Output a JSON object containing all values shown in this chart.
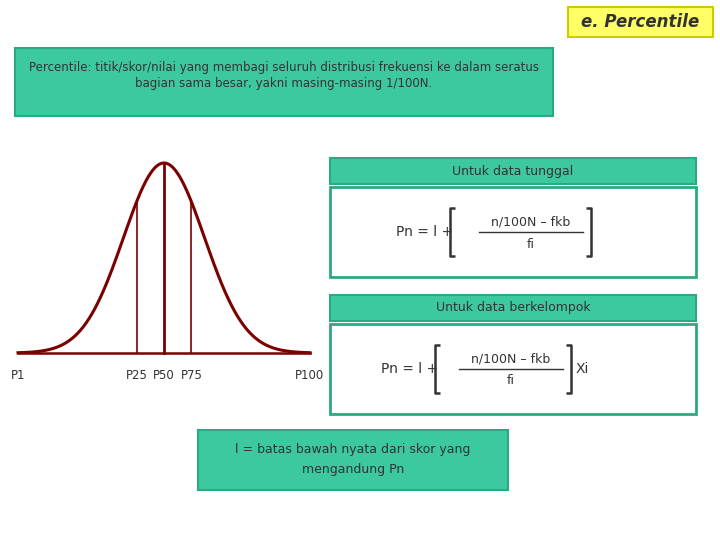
{
  "title": "e. Percentile",
  "title_bg": "#FFFF66",
  "title_border": "#CCCC00",
  "bg_color": "#FFFFFF",
  "teal_color": "#3DC9A0",
  "teal_border": "#2AAA82",
  "curve_color": "#7B0000",
  "text_dark": "#333333",
  "definition_text_line1": "Percentile: titik/skor/nilai yang membagi seluruh distribusi frekuensi ke dalam seratus",
  "definition_text_line2": "bagian sama besar, yakni masing-masing 1/100N.",
  "label_tunggal": "Untuk data tunggal",
  "label_berkelompok": "Untuk data berkelompok",
  "note_text": "l = batas bawah nyata dari skor yang\nmengandung Pn",
  "curve_labels": [
    "P1",
    "P25",
    "P50",
    "P75",
    "P100"
  ]
}
